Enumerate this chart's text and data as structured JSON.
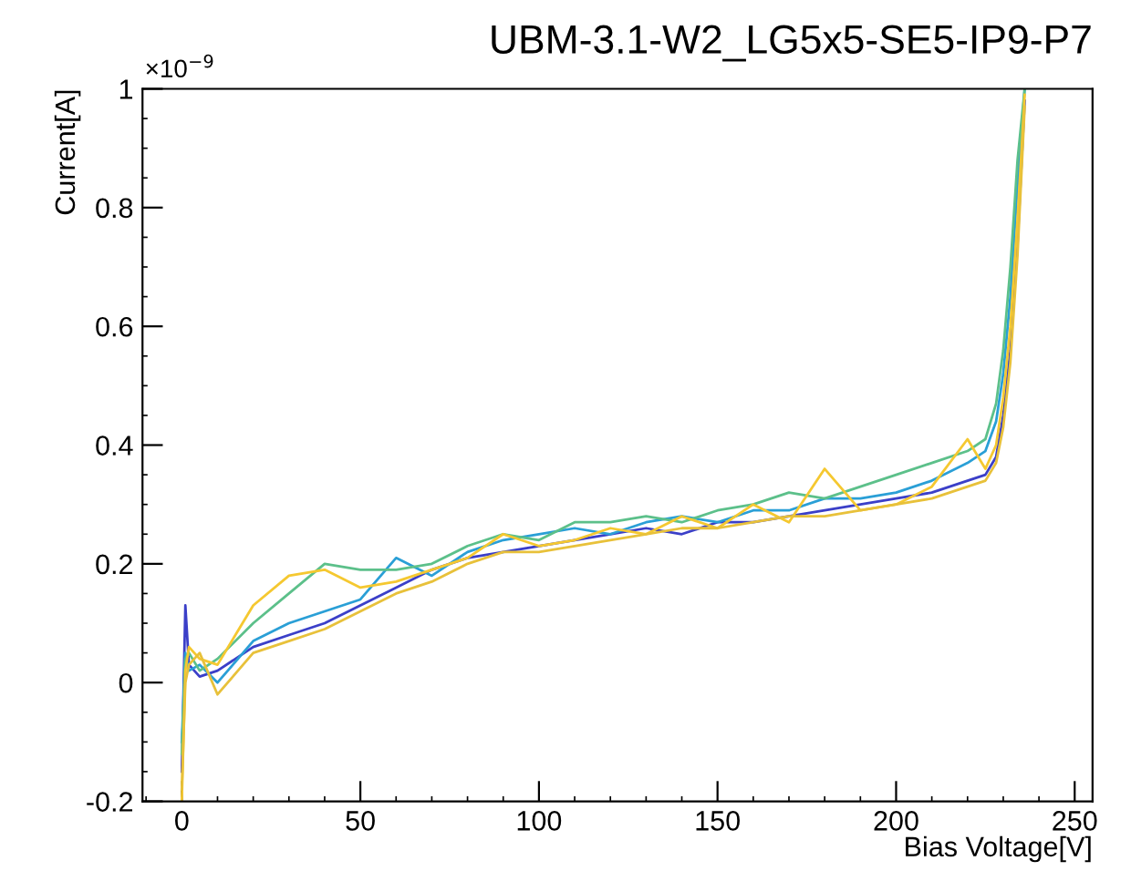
{
  "chart_data": {
    "type": "line",
    "title": "UBM-3.1-W2_LG5x5-SE5-IP9-P7",
    "xlabel": "Bias Voltage[V]",
    "ylabel": "Current[A]",
    "annotations": [
      "×10$^{−9}$"
    ],
    "x": [
      0,
      1,
      2,
      5,
      10,
      20,
      30,
      40,
      50,
      60,
      70,
      80,
      90,
      100,
      110,
      120,
      130,
      140,
      150,
      160,
      170,
      180,
      190,
      200,
      210,
      220,
      225,
      228,
      230,
      232,
      234,
      236
    ],
    "series": [
      {
        "color": "#3b3fc8",
        "values": [
          -0.15,
          0.13,
          0.03,
          0.01,
          0.02,
          0.06,
          0.08,
          0.1,
          0.13,
          0.16,
          0.19,
          0.21,
          0.22,
          0.23,
          0.24,
          0.25,
          0.26,
          0.25,
          0.27,
          0.27,
          0.28,
          0.29,
          0.3,
          0.31,
          0.32,
          0.34,
          0.35,
          0.38,
          0.45,
          0.56,
          0.74,
          0.98
        ]
      },
      {
        "color": "#2a9fd6",
        "values": [
          -0.1,
          0.05,
          0.02,
          0.03,
          0.0,
          0.07,
          0.1,
          0.12,
          0.14,
          0.21,
          0.18,
          0.22,
          0.24,
          0.25,
          0.26,
          0.25,
          0.27,
          0.28,
          0.27,
          0.29,
          0.29,
          0.31,
          0.31,
          0.32,
          0.34,
          0.37,
          0.39,
          0.44,
          0.52,
          0.65,
          0.84,
          1.0
        ]
      },
      {
        "color": "#5cc08a",
        "values": [
          -0.12,
          0.04,
          0.05,
          0.02,
          0.04,
          0.1,
          0.15,
          0.2,
          0.19,
          0.19,
          0.2,
          0.23,
          0.25,
          0.24,
          0.27,
          0.27,
          0.28,
          0.27,
          0.29,
          0.3,
          0.32,
          0.31,
          0.33,
          0.35,
          0.37,
          0.39,
          0.41,
          0.47,
          0.56,
          0.7,
          0.88,
          1.0
        ]
      },
      {
        "color": "#f5c830",
        "values": [
          -0.2,
          0.02,
          0.06,
          0.04,
          0.03,
          0.13,
          0.18,
          0.19,
          0.16,
          0.17,
          0.19,
          0.21,
          0.25,
          0.23,
          0.24,
          0.26,
          0.25,
          0.28,
          0.26,
          0.3,
          0.27,
          0.36,
          0.29,
          0.3,
          0.33,
          0.41,
          0.36,
          0.4,
          0.48,
          0.6,
          0.78,
          0.99
        ]
      },
      {
        "color": "#e8c13a",
        "values": [
          -0.18,
          0.0,
          0.03,
          0.05,
          -0.02,
          0.05,
          0.07,
          0.09,
          0.12,
          0.15,
          0.17,
          0.2,
          0.22,
          0.22,
          0.23,
          0.24,
          0.25,
          0.26,
          0.26,
          0.27,
          0.28,
          0.28,
          0.29,
          0.3,
          0.31,
          0.33,
          0.34,
          0.37,
          0.43,
          0.54,
          0.72,
          0.97
        ]
      }
    ],
    "xlim": [
      -11,
      255
    ],
    "ylim": [
      -0.2,
      1
    ],
    "xticks": [
      0,
      50,
      100,
      150,
      200,
      250
    ],
    "yticks": [
      -0.2,
      0,
      0.2,
      0.4,
      0.6,
      0.8,
      1
    ],
    "grid": false,
    "marker": "none",
    "line_style": "solid"
  }
}
